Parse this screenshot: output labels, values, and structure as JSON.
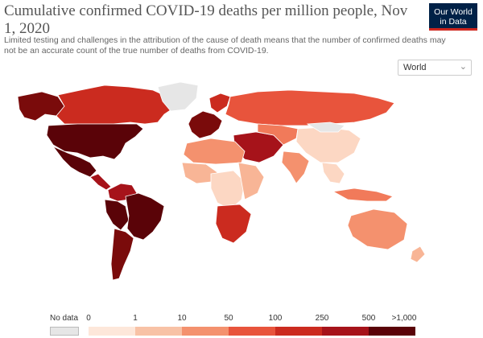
{
  "header": {
    "title": "Cumulative confirmed COVID-19 deaths per million people, Nov 1, 2020",
    "subtitle": "Limited testing and challenges in the attribution of the cause of death means that the number of confirmed deaths may not be an accurate count of the true number of deaths from COVID-19.",
    "logo_line1": "Our World",
    "logo_line2": "in Data"
  },
  "controls": {
    "region_selected": "World",
    "region_icon": "chevron-down-icon"
  },
  "map": {
    "ocean_color": "#ffffff",
    "regions": [
      {
        "name": "Alaska / Canada north",
        "color": "#7a0b0b"
      },
      {
        "name": "Canada",
        "color": "#cb2b1f"
      },
      {
        "name": "Greenland",
        "color": "#e6e6e6"
      },
      {
        "name": "United States",
        "color": "#5a0308"
      },
      {
        "name": "Mexico",
        "color": "#5a0308"
      },
      {
        "name": "Central America",
        "color": "#a6131a"
      },
      {
        "name": "Colombia / Venezuela",
        "color": "#a6131a"
      },
      {
        "name": "Peru / Bolivia",
        "color": "#5a0308"
      },
      {
        "name": "Brazil",
        "color": "#5a0308"
      },
      {
        "name": "Chile / Argentina",
        "color": "#7a0b0b"
      },
      {
        "name": "Western Europe",
        "color": "#7a0b0b"
      },
      {
        "name": "Scandinavia",
        "color": "#cb2b1f"
      },
      {
        "name": "Russia",
        "color": "#e8543c"
      },
      {
        "name": "Middle East",
        "color": "#a6131a"
      },
      {
        "name": "Central Asia",
        "color": "#f17a5a"
      },
      {
        "name": "China",
        "color": "#fcd7c3"
      },
      {
        "name": "Mongolia",
        "color": "#e6e6e6"
      },
      {
        "name": "India",
        "color": "#f4916e"
      },
      {
        "name": "Southeast Asia",
        "color": "#fcd7c3"
      },
      {
        "name": "Indonesia",
        "color": "#f17a5a"
      },
      {
        "name": "North Africa",
        "color": "#f4916e"
      },
      {
        "name": "West Africa",
        "color": "#f8b596"
      },
      {
        "name": "Central Africa",
        "color": "#fcd7c3"
      },
      {
        "name": "East Africa",
        "color": "#f8b596"
      },
      {
        "name": "Southern Africa",
        "color": "#cb2b1f"
      },
      {
        "name": "Australia",
        "color": "#f4916e"
      },
      {
        "name": "New Zealand",
        "color": "#f8b596"
      }
    ]
  },
  "legend": {
    "no_data_label": "No data",
    "no_data_color": "#e6e6e6",
    "ticks": [
      "0",
      "1",
      "10",
      "50",
      "100",
      "250",
      "500",
      ">1,000"
    ],
    "colors": [
      "#fde7da",
      "#f8c2a6",
      "#f4916e",
      "#e8543c",
      "#cb2b1f",
      "#a6131a",
      "#5a0308"
    ]
  }
}
